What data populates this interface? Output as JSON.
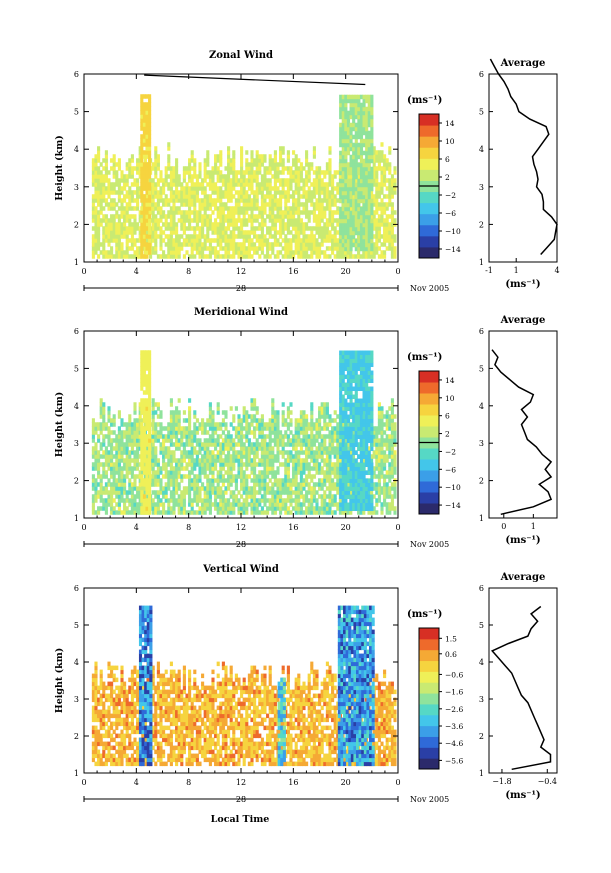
{
  "page": {
    "xlabel": "Local Time"
  },
  "chart_data": [
    {
      "type": "heatmap",
      "title": "Zonal Wind",
      "ylabel": "Height (km)",
      "yticks": [
        "1",
        "2",
        "3",
        "4",
        "5",
        "6"
      ],
      "ylim": [
        1,
        6
      ],
      "xticks": [
        "0",
        "4",
        "8",
        "12",
        "16",
        "20",
        "0"
      ],
      "xlim": [
        0,
        24
      ],
      "date_day": "28",
      "date_month": "Nov 2005",
      "colorbar": {
        "unit": "(ms⁻¹)",
        "ticks": [
          "14",
          "10",
          "6",
          "2",
          "−2",
          "−6",
          "−10",
          "−14"
        ],
        "tick_values": [
          14,
          10,
          6,
          2,
          -2,
          -6,
          -10,
          -14
        ],
        "range": [
          -16,
          16
        ],
        "zero_line": 0,
        "colors": [
          "#2b2a6b",
          "#2a3fa6",
          "#2f6ad8",
          "#3b9fe8",
          "#43c6ea",
          "#56d8c5",
          "#8fe39c",
          "#c9ea72",
          "#eff058",
          "#f6d43f",
          "#f5a935",
          "#ee6a2b",
          "#d72f24"
        ]
      },
      "field": {
        "value_range": [
          1.5,
          6
        ],
        "ranges": [
          [
            1.1,
            3.7
          ]
        ],
        "columns": [
          {
            "x": [
              4.3,
              4.9
            ],
            "y": [
              1.1,
              5.4
            ],
            "value": 7
          },
          {
            "x": [
              19.5,
              22.0
            ],
            "y": [
              1.3,
              5.4
            ],
            "value": 1
          }
        ],
        "contour_segment": {
          "x": [
            4.6,
            21.5
          ],
          "y": [
            5.97,
            5.72
          ]
        }
      },
      "average": {
        "title": "Average",
        "xticks": [
          "-1",
          "1",
          "4"
        ],
        "xtick_values": [
          -1,
          1,
          4
        ],
        "xlim": [
          -1,
          4
        ],
        "xlabel": "(ms⁻¹)",
        "height": [
          1.2,
          1.4,
          1.6,
          1.8,
          2.0,
          2.2,
          2.4,
          2.6,
          2.8,
          3.0,
          3.2,
          3.4,
          3.6,
          3.8,
          4.0,
          4.2,
          4.4,
          4.6,
          4.8,
          5.0,
          5.2,
          5.4,
          5.6,
          5.8,
          6.0,
          6.2,
          6.4
        ],
        "value": [
          2.8,
          3.3,
          3.8,
          3.9,
          4.0,
          3.6,
          3.0,
          3.0,
          2.9,
          2.5,
          2.6,
          2.5,
          2.3,
          2.2,
          2.6,
          3.0,
          3.4,
          3.2,
          2.0,
          1.2,
          1.0,
          0.6,
          0.4,
          0.1,
          -0.3,
          -0.6,
          -0.9
        ]
      }
    },
    {
      "type": "heatmap",
      "title": "Meridional Wind",
      "ylabel": "Height (km)",
      "yticks": [
        "1",
        "2",
        "3",
        "4",
        "5",
        "6"
      ],
      "ylim": [
        1,
        6
      ],
      "xticks": [
        "0",
        "4",
        "8",
        "12",
        "16",
        "20",
        "0"
      ],
      "xlim": [
        0,
        24
      ],
      "date_day": "28",
      "date_month": "Nov 2005",
      "colorbar": {
        "unit": "(ms⁻¹)",
        "ticks": [
          "14",
          "10",
          "6",
          "2",
          "−2",
          "−6",
          "−10",
          "−14"
        ],
        "tick_values": [
          14,
          10,
          6,
          2,
          -2,
          -6,
          -10,
          -14
        ],
        "range": [
          -16,
          16
        ],
        "zero_line": 0,
        "colors": [
          "#2b2a6b",
          "#2a3fa6",
          "#2f6ad8",
          "#3b9fe8",
          "#43c6ea",
          "#56d8c5",
          "#8fe39c",
          "#c9ea72",
          "#eff058",
          "#f6d43f",
          "#f5a935",
          "#ee6a2b",
          "#d72f24"
        ]
      },
      "field": {
        "value_range": [
          -2,
          4
        ],
        "ranges": [
          [
            1.1,
            3.8
          ]
        ],
        "columns": [
          {
            "x": [
              4.3,
              4.9
            ],
            "y": [
              1.1,
              5.4
            ],
            "value": 5
          },
          {
            "x": [
              19.5,
              22.0
            ],
            "y": [
              1.2,
              5.4
            ],
            "value": -4
          }
        ]
      },
      "average": {
        "title": "Average",
        "xticks": [
          "0",
          "1"
        ],
        "xtick_values": [
          0,
          1
        ],
        "xlim": [
          -0.5,
          1.8
        ],
        "xlabel": "(ms⁻¹)",
        "height": [
          1.1,
          1.3,
          1.5,
          1.7,
          1.9,
          2.1,
          2.3,
          2.5,
          2.7,
          2.9,
          3.1,
          3.3,
          3.5,
          3.7,
          3.9,
          4.1,
          4.3,
          4.5,
          4.7,
          4.9,
          5.1,
          5.3,
          5.5
        ],
        "value": [
          -0.1,
          1.0,
          1.6,
          1.5,
          1.2,
          1.6,
          1.4,
          1.6,
          1.3,
          1.1,
          0.8,
          0.7,
          0.6,
          0.8,
          0.6,
          0.9,
          1.0,
          0.5,
          0.2,
          -0.1,
          -0.3,
          -0.2,
          -0.4
        ]
      }
    },
    {
      "type": "heatmap",
      "title": "Vertical Wind",
      "ylabel": "Height (km)",
      "yticks": [
        "1",
        "2",
        "3",
        "4",
        "5",
        "6"
      ],
      "ylim": [
        1,
        6
      ],
      "xticks": [
        "0",
        "4",
        "8",
        "12",
        "16",
        "20",
        "0"
      ],
      "xlim": [
        0,
        24
      ],
      "date_day": "28",
      "date_month": "Nov 2005",
      "colorbar": {
        "unit": "(ms⁻¹)",
        "ticks": [
          "1.5",
          "0.6",
          "−0.6",
          "−1.6",
          "−2.6",
          "−3.6",
          "−4.6",
          "−5.6"
        ],
        "tick_values": [
          1.5,
          0.6,
          -0.6,
          -1.6,
          -2.6,
          -3.6,
          -4.6,
          -5.6
        ],
        "range": [
          -6.1,
          2.1
        ],
        "colors": [
          "#2b2a6b",
          "#2a3fa6",
          "#2f6ad8",
          "#3b9fe8",
          "#43c6ea",
          "#56d8c5",
          "#8fe39c",
          "#c9ea72",
          "#eff058",
          "#f6d43f",
          "#f5a935",
          "#ee6a2b",
          "#d72f24"
        ]
      },
      "field": {
        "value_range": [
          -0.4,
          1.0
        ],
        "ranges": [
          [
            1.2,
            3.6
          ]
        ],
        "columns": [
          {
            "x": [
              4.2,
              5.0
            ],
            "y": [
              1.2,
              5.5
            ],
            "value": -4.2
          },
          {
            "x": [
              19.4,
              22.0
            ],
            "y": [
              1.2,
              5.5
            ],
            "value": -3.8
          },
          {
            "x": [
              14.8,
              15.3
            ],
            "y": [
              1.2,
              3.5
            ],
            "value": -3.0
          }
        ]
      },
      "average": {
        "title": "Average",
        "xticks": [
          "−1.8",
          "−0.4"
        ],
        "xtick_values": [
          -1.8,
          -0.4
        ],
        "xlim": [
          -2.2,
          -0.1
        ],
        "xlabel": "(ms⁻¹)",
        "height": [
          1.1,
          1.3,
          1.5,
          1.7,
          1.9,
          2.1,
          2.3,
          2.5,
          2.7,
          2.9,
          3.1,
          3.3,
          3.5,
          3.7,
          3.9,
          4.1,
          4.3,
          4.5,
          4.7,
          4.9,
          5.1,
          5.3,
          5.5
        ],
        "value": [
          -1.5,
          -0.3,
          -0.3,
          -0.6,
          -0.5,
          -0.6,
          -0.7,
          -0.8,
          -0.9,
          -1.0,
          -1.2,
          -1.3,
          -1.4,
          -1.5,
          -1.7,
          -1.9,
          -2.1,
          -1.6,
          -1.0,
          -0.9,
          -0.7,
          -0.9,
          -0.6
        ]
      }
    }
  ]
}
